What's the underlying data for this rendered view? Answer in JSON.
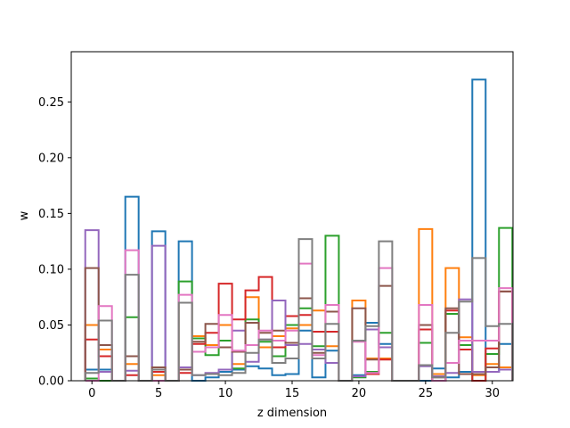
{
  "chart_data": {
    "type": "line",
    "step_style": "bar-outline",
    "title": "",
    "xlabel": "z dimension",
    "ylabel": "w",
    "xlim": [
      -1.55,
      31.55
    ],
    "ylim": [
      0,
      0.295
    ],
    "xticks": [
      0,
      5,
      10,
      15,
      20,
      25,
      30
    ],
    "yticks": [
      0.0,
      0.05,
      0.1,
      0.15,
      0.2,
      0.25
    ],
    "ytick_labels": [
      "0.00",
      "0.05",
      "0.10",
      "0.15",
      "0.20",
      "0.25"
    ],
    "grid": false,
    "legend": "none",
    "x": [
      0,
      1,
      2,
      3,
      4,
      5,
      6,
      7,
      8,
      9,
      10,
      11,
      12,
      13,
      14,
      15,
      16,
      17,
      18,
      19,
      20,
      21,
      22,
      23,
      24,
      25,
      26,
      27,
      28,
      29,
      30,
      31
    ],
    "series": [
      {
        "color": "#1f77b4",
        "values": [
          0.01,
          0.01,
          0.0,
          0.165,
          0.0,
          0.134,
          0.0,
          0.125,
          0.0,
          0.003,
          0.008,
          0.01,
          0.013,
          0.011,
          0.005,
          0.006,
          0.045,
          0.003,
          0.027,
          0.0,
          0.005,
          0.052,
          0.033,
          0.0,
          0.0,
          0.0,
          0.011,
          0.003,
          0.008,
          0.27,
          0.008,
          0.033
        ]
      },
      {
        "color": "#ff7f0e",
        "values": [
          0.05,
          0.028,
          0.0,
          0.015,
          0.0,
          0.005,
          0.0,
          0.07,
          0.04,
          0.032,
          0.05,
          0.015,
          0.075,
          0.03,
          0.04,
          0.047,
          0.05,
          0.063,
          0.031,
          0.0,
          0.072,
          0.02,
          0.02,
          0.0,
          0.0,
          0.136,
          0.006,
          0.101,
          0.039,
          0.005,
          0.015,
          0.012
        ]
      },
      {
        "color": "#2ca02c",
        "values": [
          0.002,
          0.0,
          0.0,
          0.057,
          0.0,
          0.0,
          0.0,
          0.089,
          0.038,
          0.023,
          0.036,
          0.011,
          0.055,
          0.035,
          0.022,
          0.05,
          0.065,
          0.031,
          0.13,
          0.0,
          0.003,
          0.008,
          0.043,
          0.0,
          0.0,
          0.034,
          0.0,
          0.06,
          0.032,
          0.0,
          0.024,
          0.137
        ]
      },
      {
        "color": "#d62728",
        "values": [
          0.037,
          0.022,
          0.0,
          0.005,
          0.0,
          0.008,
          0.0,
          0.007,
          0.033,
          0.043,
          0.087,
          0.055,
          0.081,
          0.093,
          0.03,
          0.058,
          0.059,
          0.044,
          0.044,
          0.0,
          0.036,
          0.006,
          0.019,
          0.0,
          0.0,
          0.046,
          0.0,
          0.063,
          0.028,
          0.0,
          0.029,
          0.08
        ]
      },
      {
        "color": "#9467bd",
        "values": [
          0.135,
          0.008,
          0.0,
          0.009,
          0.0,
          0.121,
          0.0,
          0.012,
          0.005,
          0.007,
          0.01,
          0.045,
          0.017,
          0.037,
          0.072,
          0.032,
          0.033,
          0.028,
          0.016,
          0.0,
          0.004,
          0.046,
          0.03,
          0.0,
          0.0,
          0.013,
          0.004,
          0.007,
          0.073,
          0.008,
          0.008,
          0.01
        ]
      },
      {
        "color": "#8c564b",
        "values": [
          0.101,
          0.032,
          0.0,
          0.022,
          0.0,
          0.012,
          0.0,
          0.01,
          0.035,
          0.051,
          0.03,
          0.026,
          0.052,
          0.043,
          0.045,
          0.034,
          0.074,
          0.025,
          0.062,
          0.0,
          0.065,
          0.019,
          0.085,
          0.0,
          0.0,
          0.05,
          0.003,
          0.065,
          0.006,
          0.006,
          0.012,
          0.08
        ]
      },
      {
        "color": "#e377c2",
        "values": [
          0.0,
          0.067,
          0.0,
          0.117,
          0.0,
          0.0,
          0.0,
          0.077,
          0.026,
          0.03,
          0.059,
          0.027,
          0.032,
          0.045,
          0.036,
          0.045,
          0.105,
          0.023,
          0.068,
          0.0,
          0.035,
          0.007,
          0.101,
          0.0,
          0.0,
          0.068,
          0.0,
          0.016,
          0.036,
          0.036,
          0.036,
          0.083
        ]
      },
      {
        "color": "#7f7f7f",
        "values": [
          0.007,
          0.054,
          0.0,
          0.095,
          0.0,
          0.01,
          0.0,
          0.07,
          0.005,
          0.006,
          0.005,
          0.007,
          0.025,
          0.037,
          0.016,
          0.02,
          0.127,
          0.02,
          0.051,
          0.0,
          0.036,
          0.049,
          0.125,
          0.0,
          0.0,
          0.014,
          0.003,
          0.043,
          0.071,
          0.11,
          0.049,
          0.051
        ]
      }
    ]
  }
}
